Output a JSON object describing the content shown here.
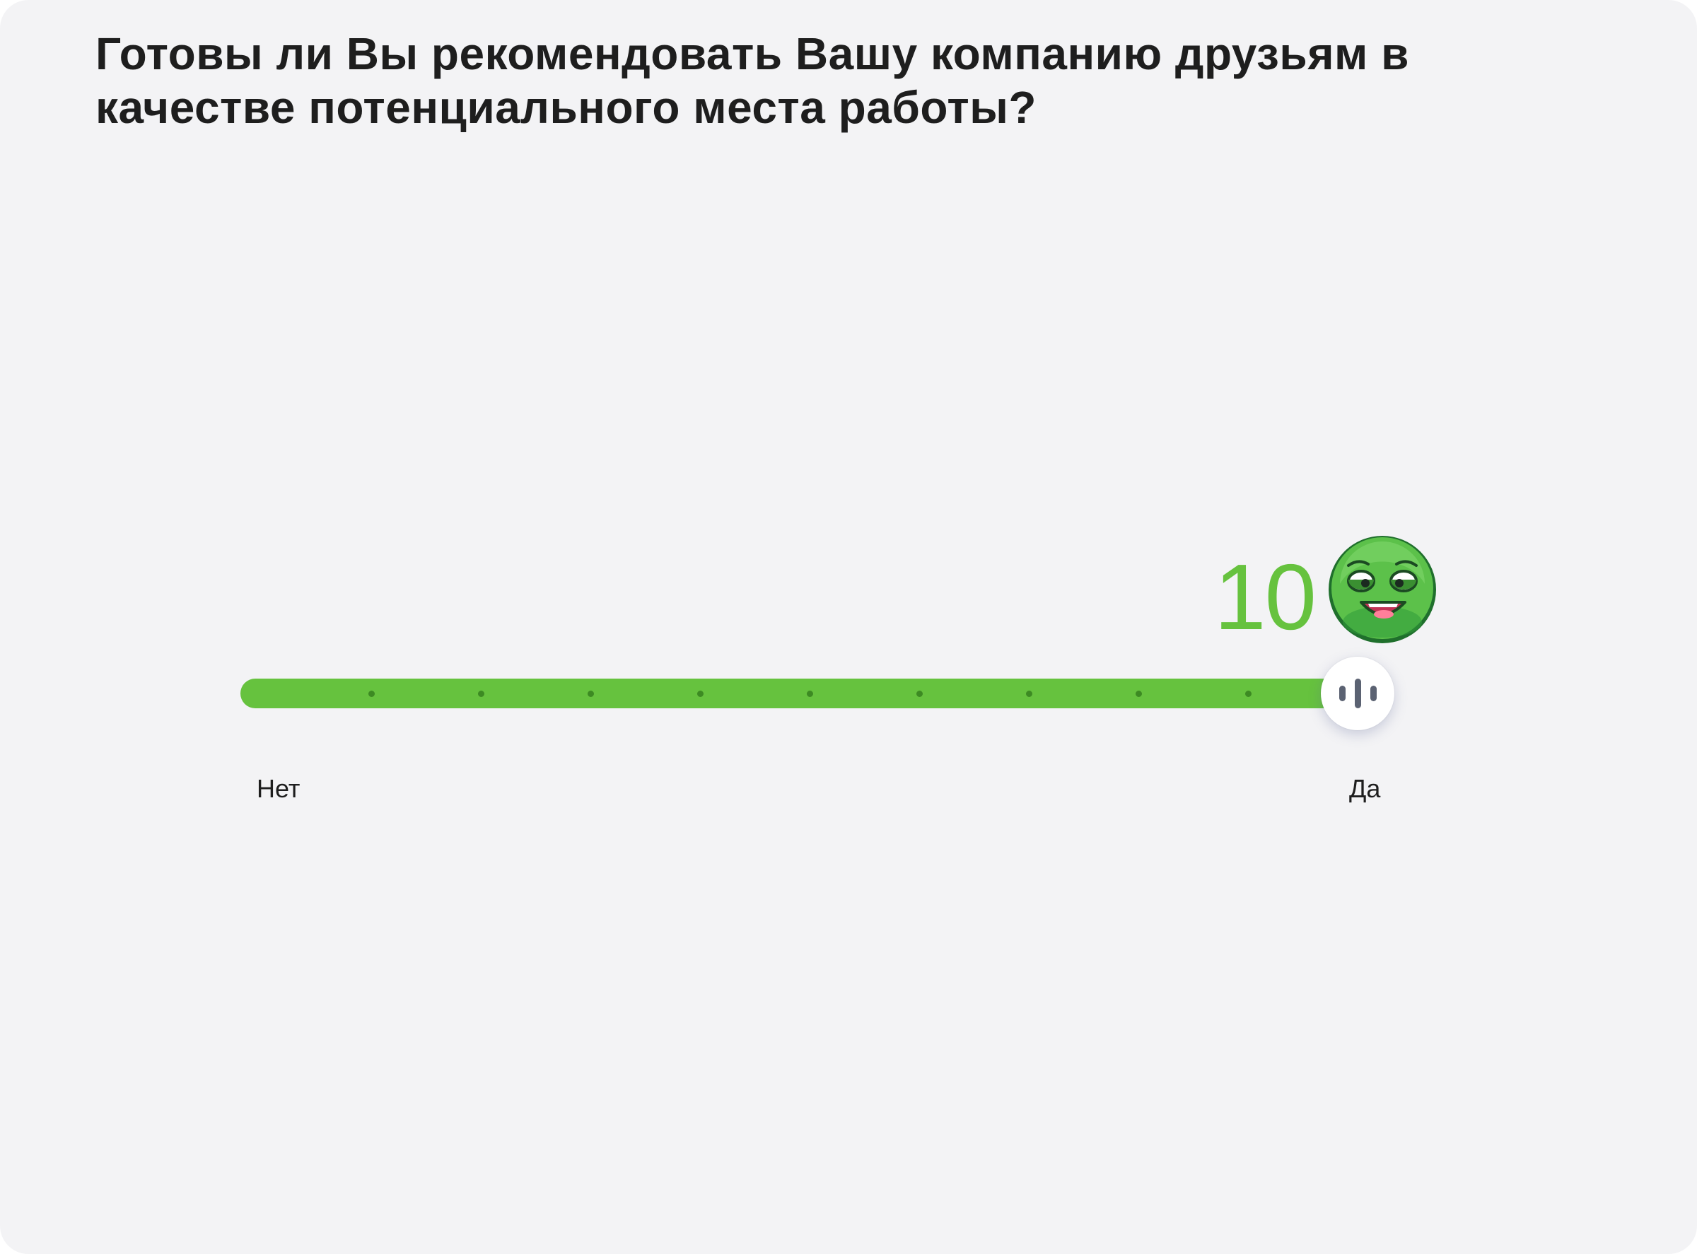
{
  "question": {
    "text": "Готовы ли Вы рекомендовать Вашу компанию друзьям в качестве потенциального места работы?"
  },
  "rating": {
    "min": 0,
    "max": 10,
    "value": 10,
    "value_text": "10",
    "min_label": "Нет",
    "max_label": "Да",
    "accent_color": "#66c23e",
    "face_icon": "happy-face-icon",
    "thumb_icon": "grip-lines-icon"
  }
}
